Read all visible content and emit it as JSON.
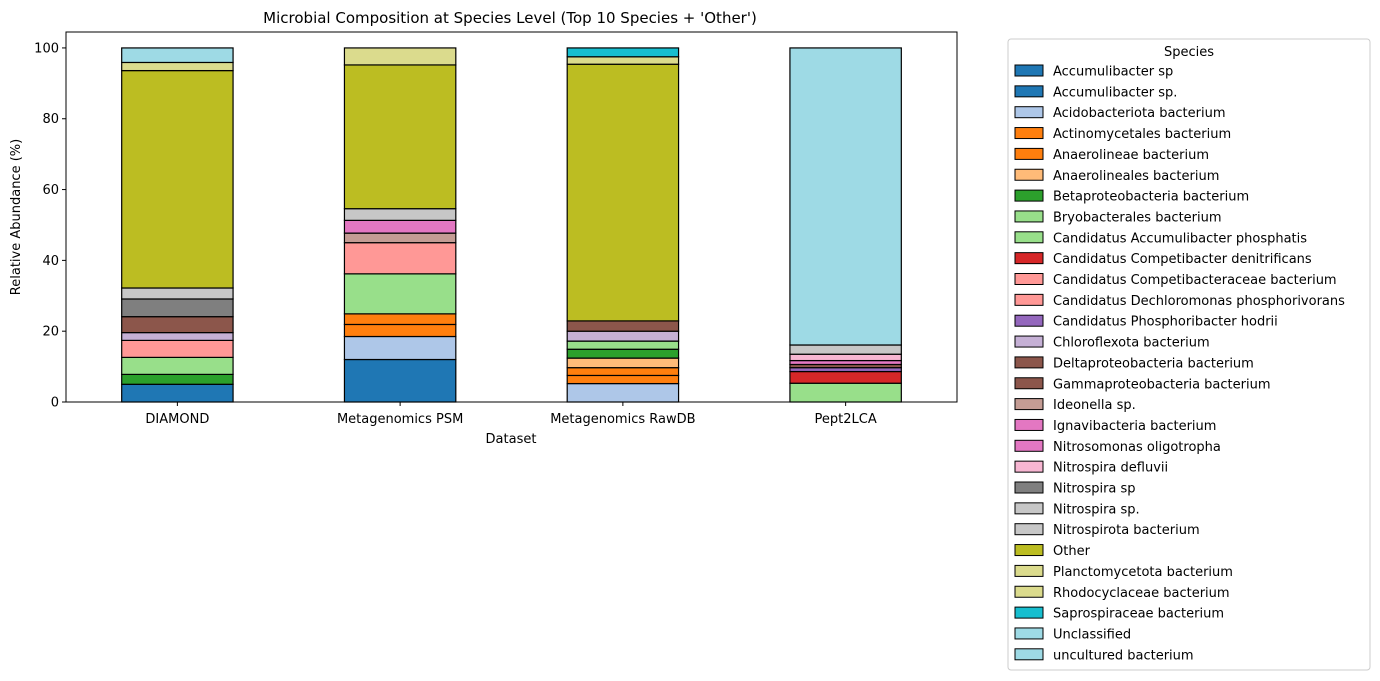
{
  "chart_data": {
    "type": "bar",
    "stacked": true,
    "title": "Microbial Composition at Species Level (Top 10 Species + 'Other')",
    "xlabel": "Dataset",
    "ylabel": "Relative Abundance (%)",
    "ylim": [
      0,
      104.5
    ],
    "yticks": [
      0,
      20,
      40,
      60,
      80,
      100
    ],
    "categories": [
      "DIAMOND",
      "Metagenomics PSM",
      "Metagenomics RawDB",
      "Pept2LCA"
    ],
    "legend": {
      "title": "Species",
      "position": "outside-right"
    },
    "grid": false,
    "series": [
      {
        "name": "Accumulibacter sp",
        "color": "#1f77b4",
        "values": [
          0,
          0,
          0,
          0
        ]
      },
      {
        "name": "Accumulibacter sp.",
        "color": "#1f77b4",
        "values": [
          5.0,
          12.0,
          0,
          0
        ]
      },
      {
        "name": "Acidobacteriota bacterium",
        "color": "#aec7e8",
        "values": [
          0,
          6.5,
          5.2,
          0
        ]
      },
      {
        "name": "Actinomycetales bacterium",
        "color": "#ff7f0e",
        "values": [
          0,
          3.4,
          2.3,
          0
        ]
      },
      {
        "name": "Anaerolineae bacterium",
        "color": "#ff7f0e",
        "values": [
          0,
          3.0,
          2.2,
          0
        ]
      },
      {
        "name": "Anaerolineales bacterium",
        "color": "#ffbb78",
        "values": [
          0,
          0,
          2.7,
          0
        ]
      },
      {
        "name": "Betaproteobacteria bacterium",
        "color": "#2ca02c",
        "values": [
          2.8,
          0,
          2.5,
          0
        ]
      },
      {
        "name": "Bryobacterales bacterium",
        "color": "#98df8a",
        "values": [
          4.8,
          11.3,
          2.3,
          0
        ]
      },
      {
        "name": "Candidatus Accumulibacter phosphatis",
        "color": "#98df8a",
        "values": [
          0,
          0,
          0,
          5.3
        ]
      },
      {
        "name": "Candidatus Competibacter denitrificans",
        "color": "#d62728",
        "values": [
          0,
          0,
          0,
          3.3
        ]
      },
      {
        "name": "Candidatus Competibacteraceae bacterium",
        "color": "#ff9896",
        "values": [
          4.8,
          0,
          0,
          0
        ]
      },
      {
        "name": "Candidatus Dechloromonas phosphorivorans",
        "color": "#ff9896",
        "values": [
          0,
          8.8,
          0,
          0
        ]
      },
      {
        "name": "Candidatus Phosphoribacter hodrii",
        "color": "#9467bd",
        "values": [
          0,
          0,
          0,
          1.1
        ]
      },
      {
        "name": "Chloroflexota bacterium",
        "color": "#c5b0d5",
        "values": [
          2.2,
          0,
          2.8,
          0
        ]
      },
      {
        "name": "Deltaproteobacteria bacterium",
        "color": "#8c564b",
        "values": [
          0,
          0,
          0,
          0.9
        ]
      },
      {
        "name": "Gammaproteobacteria bacterium",
        "color": "#8c564b",
        "values": [
          4.5,
          0,
          2.9,
          0
        ]
      },
      {
        "name": "Ideonella sp.",
        "color": "#c49c94",
        "values": [
          0,
          2.7,
          0,
          0
        ]
      },
      {
        "name": "Ignavibacteria bacterium",
        "color": "#e377c2",
        "values": [
          0,
          3.6,
          0,
          0
        ]
      },
      {
        "name": "Nitrosomonas oligotropha",
        "color": "#e377c2",
        "values": [
          0,
          0,
          0,
          1.1
        ]
      },
      {
        "name": "Nitrospira defluvii",
        "color": "#f7b6d2",
        "values": [
          0,
          0,
          0,
          1.8
        ]
      },
      {
        "name": "Nitrospira sp",
        "color": "#7f7f7f",
        "values": [
          5.0,
          0,
          0,
          0
        ]
      },
      {
        "name": "Nitrospira sp.",
        "color": "#c7c7c7",
        "values": [
          0,
          0,
          0,
          2.6
        ]
      },
      {
        "name": "Nitrospirota bacterium",
        "color": "#c7c7c7",
        "values": [
          3.1,
          3.3,
          0,
          0
        ]
      },
      {
        "name": "Other",
        "color": "#bcbd22",
        "values": [
          61.4,
          40.6,
          72.5,
          0
        ]
      },
      {
        "name": "Planctomycetota bacterium",
        "color": "#dbdb8d",
        "values": [
          2.3,
          4.8,
          0,
          0
        ]
      },
      {
        "name": "Rhodocyclaceae bacterium",
        "color": "#dbdb8d",
        "values": [
          0,
          0,
          2.1,
          0
        ]
      },
      {
        "name": "Saprospiraceae bacterium",
        "color": "#17becf",
        "values": [
          0,
          0,
          2.5,
          0
        ]
      },
      {
        "name": "Unclassified",
        "color": "#9edae5",
        "values": [
          4.1,
          0,
          0,
          0
        ]
      },
      {
        "name": "uncultured bacterium",
        "color": "#9edae5",
        "values": [
          0,
          0,
          0,
          83.9
        ]
      }
    ]
  }
}
